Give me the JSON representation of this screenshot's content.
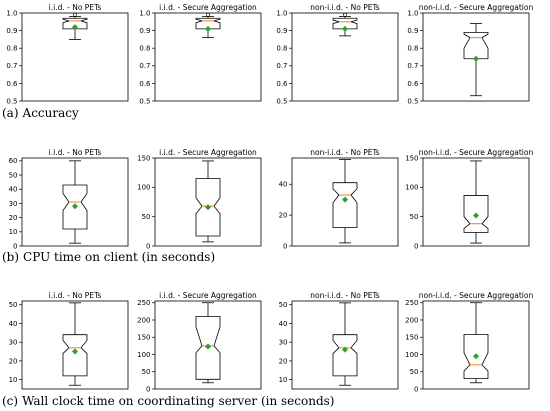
{
  "captions": [
    {
      "letter": "(a)",
      "text": "Accuracy"
    },
    {
      "letter": "(b)",
      "text": "CPU time on client (in seconds)"
    },
    {
      "letter": "(c)",
      "text": "Wall clock time on coordinating server (in seconds)"
    }
  ],
  "colors": {
    "median": "#ff7f0e",
    "mean": "#2ca02c",
    "box": "#000000"
  },
  "chart_data": [
    {
      "type": "box",
      "title": "i.i.d. - No PETs",
      "ylim": [
        0.5,
        1.0
      ],
      "yticks": [
        "0.5",
        "0.6",
        "0.7",
        "0.8",
        "0.9",
        "1.0"
      ],
      "yticks_v": [
        0.5,
        0.6,
        0.7,
        0.8,
        0.9,
        1.0
      ],
      "whislo": 0.85,
      "q1": 0.91,
      "med": 0.955,
      "q3": 0.97,
      "whishi": 0.98,
      "mean": 0.92,
      "notch": [
        0.945,
        0.965
      ],
      "fliers": [
        0.99
      ]
    },
    {
      "type": "box",
      "title": "i.i.d. - Secure Aggregation",
      "ylim": [
        0.5,
        1.0
      ],
      "yticks": [
        "0.5",
        "0.6",
        "0.7",
        "0.8",
        "0.9",
        "1.0"
      ],
      "yticks_v": [
        0.5,
        0.6,
        0.7,
        0.8,
        0.9,
        1.0
      ],
      "whislo": 0.86,
      "q1": 0.91,
      "med": 0.955,
      "q3": 0.97,
      "whishi": 0.98,
      "mean": 0.91,
      "notch": [
        0.945,
        0.965
      ],
      "fliers": [
        0.99
      ]
    },
    {
      "type": "box",
      "title": "non-i.i.d. - No PETs",
      "ylim": [
        0.5,
        1.0
      ],
      "yticks": [
        "0.5",
        "0.6",
        "0.7",
        "0.8",
        "0.9",
        "1.0"
      ],
      "yticks_v": [
        0.5,
        0.6,
        0.7,
        0.8,
        0.9,
        1.0
      ],
      "whislo": 0.87,
      "q1": 0.91,
      "med": 0.95,
      "q3": 0.97,
      "whishi": 0.98,
      "mean": 0.91,
      "notch": [
        0.94,
        0.96
      ],
      "fliers": [
        0.99
      ]
    },
    {
      "type": "box",
      "title": "non-i.i.d. - Secure Aggregation",
      "ylim": [
        0.5,
        1.0
      ],
      "yticks": [
        "0.5",
        "0.6",
        "0.7",
        "0.8",
        "0.9",
        "1.0"
      ],
      "yticks_v": [
        0.5,
        0.6,
        0.7,
        0.8,
        0.9,
        1.0
      ],
      "whislo": 0.53,
      "q1": 0.74,
      "med": 0.86,
      "q3": 0.89,
      "whishi": 0.94,
      "mean": 0.74,
      "notch": [
        0.8,
        0.88
      ],
      "fliers": []
    },
    {
      "type": "box",
      "title": "i.i.d. - No PETs",
      "ylim": [
        0,
        62
      ],
      "yticks": [
        "0",
        "10",
        "20",
        "30",
        "40",
        "50",
        "60"
      ],
      "yticks_v": [
        0,
        10,
        20,
        30,
        40,
        50,
        60
      ],
      "whislo": 2,
      "q1": 12,
      "med": 31,
      "q3": 43,
      "whishi": 60,
      "mean": 28,
      "notch": [
        25,
        37
      ],
      "fliers": []
    },
    {
      "type": "box",
      "title": "i.i.d. - Secure Aggregation",
      "ylim": [
        0,
        150
      ],
      "yticks": [
        "0",
        "50",
        "100",
        "150"
      ],
      "yticks_v": [
        0,
        50,
        100,
        150
      ],
      "whislo": 7,
      "q1": 17,
      "med": 68,
      "q3": 115,
      "whishi": 145,
      "mean": 66,
      "notch": [
        55,
        82
      ],
      "fliers": []
    },
    {
      "type": "box",
      "title": "non-i.i.d. - No PETs",
      "ylim": [
        0,
        57
      ],
      "yticks": [
        "0",
        "20",
        "40"
      ],
      "yticks_v": [
        0,
        20,
        40
      ],
      "whislo": 2,
      "q1": 12,
      "med": 33,
      "q3": 41,
      "whishi": 56,
      "mean": 30,
      "notch": [
        28,
        37
      ],
      "fliers": []
    },
    {
      "type": "box",
      "title": "non-i.i.d. - Secure Aggregation",
      "ylim": [
        0,
        150
      ],
      "yticks": [
        "0",
        "50",
        "100",
        "150"
      ],
      "yticks_v": [
        0,
        50,
        100,
        150
      ],
      "whislo": 5,
      "q1": 23,
      "med": 38,
      "q3": 86,
      "whishi": 145,
      "mean": 52,
      "notch": [
        30,
        50
      ],
      "fliers": []
    },
    {
      "type": "box",
      "title": "i.i.d. - No PETs",
      "ylim": [
        5,
        52
      ],
      "yticks": [
        "10",
        "20",
        "30",
        "40",
        "50"
      ],
      "yticks_v": [
        10,
        20,
        30,
        40,
        50
      ],
      "whislo": 7,
      "q1": 12,
      "med": 27,
      "q3": 34,
      "whishi": 51,
      "mean": 25,
      "notch": [
        24,
        31
      ],
      "fliers": []
    },
    {
      "type": "box",
      "title": "i.i.d. - Secure Aggregation",
      "ylim": [
        0,
        255
      ],
      "yticks": [
        "0",
        "50",
        "100",
        "150",
        "200",
        "250"
      ],
      "yticks_v": [
        0,
        50,
        100,
        150,
        200,
        250
      ],
      "whislo": 18,
      "q1": 28,
      "med": 125,
      "q3": 210,
      "whishi": 250,
      "mean": 123,
      "notch": [
        105,
        180
      ],
      "fliers": []
    },
    {
      "type": "box",
      "title": "non-i.i.d. - No PETs",
      "ylim": [
        5,
        52
      ],
      "yticks": [
        "10",
        "20",
        "30",
        "40",
        "50"
      ],
      "yticks_v": [
        10,
        20,
        30,
        40,
        50
      ],
      "whislo": 7,
      "q1": 12,
      "med": 27,
      "q3": 34,
      "whishi": 51,
      "mean": 26,
      "notch": [
        24,
        31
      ],
      "fliers": []
    },
    {
      "type": "box",
      "title": "non-i.i.d. - Secure Aggregation",
      "ylim": [
        0,
        255
      ],
      "yticks": [
        "0",
        "50",
        "100",
        "150",
        "200",
        "250"
      ],
      "yticks_v": [
        0,
        50,
        100,
        150,
        200,
        250
      ],
      "whislo": 18,
      "q1": 30,
      "med": 70,
      "q3": 158,
      "whishi": 250,
      "mean": 95,
      "notch": [
        52,
        105
      ],
      "fliers": []
    }
  ]
}
